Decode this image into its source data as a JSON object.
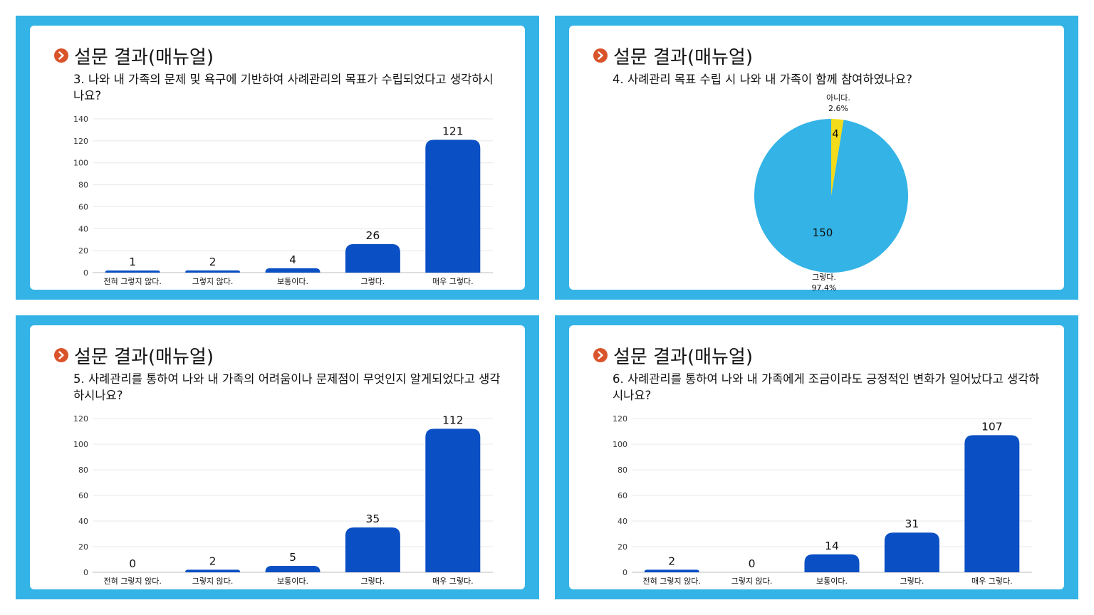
{
  "colors": {
    "panel": "#33b3e6",
    "bar": "#0a4fc4",
    "accent": "#d9542b",
    "pie_main": "#33b3e6",
    "pie_minor": "#f2db1a"
  },
  "icons": {
    "bullet": "chevron-right-icon"
  },
  "panels": [
    {
      "heading": "설문 결과(매뉴얼)",
      "question": "3. 나와 내 가족의 문제 및 욕구에 기반하여 사례관리의 목표가 수립되었다고 생각하시나요?"
    },
    {
      "heading": "설문 결과(매뉴얼)",
      "question": "4. 사례관리 목표 수립 시 나와 내 가족이 함께 참여하였나요?"
    },
    {
      "heading": "설문 결과(매뉴얼)",
      "question": "5. 사례관리를 통하여 나와 내 가족의 어려움이나 문제점이 무엇인지 알게되었다고 생각하시나요?"
    },
    {
      "heading": "설문 결과(매뉴얼)",
      "question": "6. 사례관리를 통하여 나와 내 가족에게 조금이라도 긍정적인 변화가 일어났다고 생각하시나요?"
    }
  ],
  "chart_data": [
    {
      "type": "bar",
      "categories": [
        "전혀 그렇지 않다.",
        "그렇지 않다.",
        "보통이다.",
        "그렇다.",
        "매우 그렇다."
      ],
      "values": [
        1,
        2,
        4,
        26,
        121
      ],
      "ylim": [
        0,
        140
      ],
      "yticks": [
        "0",
        "20",
        "40",
        "60",
        "80",
        "100",
        "120",
        "140"
      ],
      "data_labels": [
        "1",
        "2",
        "4",
        "26",
        "121"
      ],
      "grid": true
    },
    {
      "type": "pie",
      "slices": [
        {
          "label": "아니다.",
          "value": 4,
          "value_label": "4",
          "percent_label": "2.6%"
        },
        {
          "label": "그렇다.",
          "value": 150,
          "value_label": "150",
          "percent_label": "97.4%"
        }
      ]
    },
    {
      "type": "bar",
      "categories": [
        "전혀 그렇지 않다.",
        "그렇지 않다.",
        "보통이다.",
        "그렇다.",
        "매우 그렇다."
      ],
      "values": [
        0,
        2,
        5,
        35,
        112
      ],
      "ylim": [
        0,
        120
      ],
      "yticks": [
        "0",
        "20",
        "40",
        "60",
        "80",
        "100",
        "120"
      ],
      "data_labels": [
        "0",
        "2",
        "5",
        "35",
        "112"
      ],
      "grid": true
    },
    {
      "type": "bar",
      "categories": [
        "전혀 그렇지 않다.",
        "그렇지 않다.",
        "보통이다.",
        "그렇다.",
        "매우 그렇다."
      ],
      "values": [
        2,
        0,
        14,
        31,
        107
      ],
      "ylim": [
        0,
        120
      ],
      "yticks": [
        "0",
        "20",
        "40",
        "60",
        "80",
        "100",
        "120"
      ],
      "data_labels": [
        "2",
        "0",
        "14",
        "31",
        "107"
      ],
      "grid": true
    }
  ]
}
